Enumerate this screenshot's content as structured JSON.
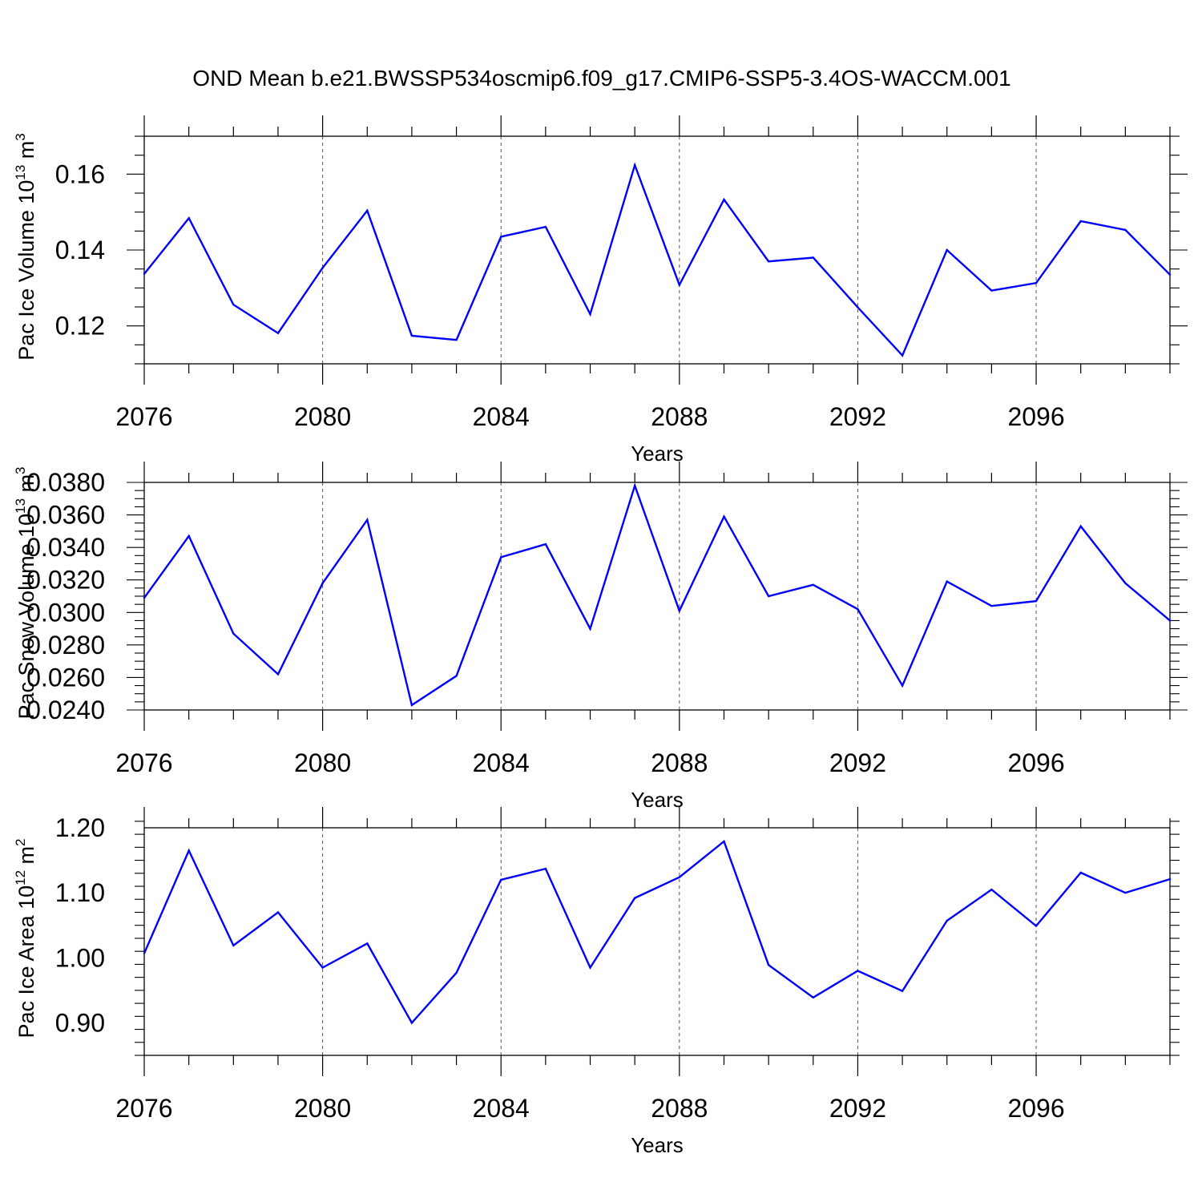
{
  "title": "OND Mean b.e21.BWSSP534oscmip6.f09_g17.CMIP6-SSP5-3.4OS-WACCM.001",
  "colors": {
    "line": "#0000ff",
    "axis": "#000000",
    "grid": "#555555"
  },
  "chart_data": [
    {
      "type": "line",
      "ylabel": {
        "text": "Pac Ice Volume 10",
        "exp": "13",
        "unit": " m",
        "unit_exp": "3"
      },
      "xlabel": "Years",
      "xlim": [
        2076,
        2099
      ],
      "ylim": [
        0.11,
        0.17
      ],
      "xticks": [
        2076,
        2080,
        2084,
        2088,
        2092,
        2096
      ],
      "yticks": [
        0.12,
        0.14,
        0.16
      ],
      "ytick_labels": [
        "0.12",
        "0.14",
        "0.16"
      ],
      "yminor_step": 0.005,
      "grid": "vertical dashed",
      "x": [
        2076,
        2077,
        2078,
        2079,
        2080,
        2081,
        2082,
        2083,
        2084,
        2085,
        2086,
        2087,
        2088,
        2089,
        2090,
        2091,
        2092,
        2093,
        2094,
        2095,
        2096,
        2097,
        2098,
        2099
      ],
      "values": [
        0.1337,
        0.1484,
        0.1256,
        0.1181,
        0.1353,
        0.1504,
        0.1174,
        0.1163,
        0.1435,
        0.1461,
        0.1231,
        0.1624,
        0.1308,
        0.1533,
        0.137,
        0.138,
        0.1249,
        0.1122,
        0.14,
        0.1293,
        0.1313,
        0.1476,
        0.1453,
        0.1335
      ]
    },
    {
      "type": "line",
      "ylabel": {
        "text": "Pac Snow Volume 10",
        "exp": "13",
        "unit": " m",
        "unit_exp": "3"
      },
      "xlabel": "Years",
      "xlim": [
        2076,
        2099
      ],
      "ylim": [
        0.024,
        0.038
      ],
      "xticks": [
        2076,
        2080,
        2084,
        2088,
        2092,
        2096
      ],
      "yticks": [
        0.024,
        0.026,
        0.028,
        0.03,
        0.032,
        0.034,
        0.036,
        0.038
      ],
      "ytick_labels": [
        "0.0240",
        "0.0260",
        "0.0280",
        "0.0300",
        "0.0320",
        "0.0340",
        "0.0360",
        "0.0380"
      ],
      "yminor_step": 0.0005,
      "grid": "vertical dashed",
      "x": [
        2076,
        2077,
        2078,
        2079,
        2080,
        2081,
        2082,
        2083,
        2084,
        2085,
        2086,
        2087,
        2088,
        2089,
        2090,
        2091,
        2092,
        2093,
        2094,
        2095,
        2096,
        2097,
        2098,
        2099
      ],
      "values": [
        0.0309,
        0.0347,
        0.0287,
        0.0262,
        0.0318,
        0.0357,
        0.0243,
        0.0261,
        0.0334,
        0.0342,
        0.029,
        0.0378,
        0.0301,
        0.0359,
        0.031,
        0.0317,
        0.0302,
        0.0255,
        0.0319,
        0.0304,
        0.0307,
        0.0353,
        0.0318,
        0.0295
      ]
    },
    {
      "type": "line",
      "ylabel": {
        "text": "Pac Ice Area 10",
        "exp": "12",
        "unit": " m",
        "unit_exp": "2"
      },
      "xlabel": "Years",
      "xlim": [
        2076,
        2099
      ],
      "ylim": [
        0.85,
        1.2
      ],
      "xticks": [
        2076,
        2080,
        2084,
        2088,
        2092,
        2096
      ],
      "yticks": [
        0.9,
        1.0,
        1.1,
        1.2
      ],
      "ytick_labels": [
        "0.90",
        "1.00",
        "1.10",
        "1.20"
      ],
      "yminor_step": 0.02,
      "grid": "vertical dashed",
      "x": [
        2076,
        2077,
        2078,
        2079,
        2080,
        2081,
        2082,
        2083,
        2084,
        2085,
        2086,
        2087,
        2088,
        2089,
        2090,
        2091,
        2092,
        2093,
        2094,
        2095,
        2096,
        2097,
        2098,
        2099
      ],
      "values": [
        1.007,
        1.165,
        1.019,
        1.07,
        0.985,
        1.022,
        0.9,
        0.977,
        1.12,
        1.137,
        0.985,
        1.092,
        1.124,
        1.179,
        0.989,
        0.939,
        0.98,
        0.949,
        1.057,
        1.105,
        1.049,
        1.131,
        1.1,
        1.121
      ]
    }
  ]
}
